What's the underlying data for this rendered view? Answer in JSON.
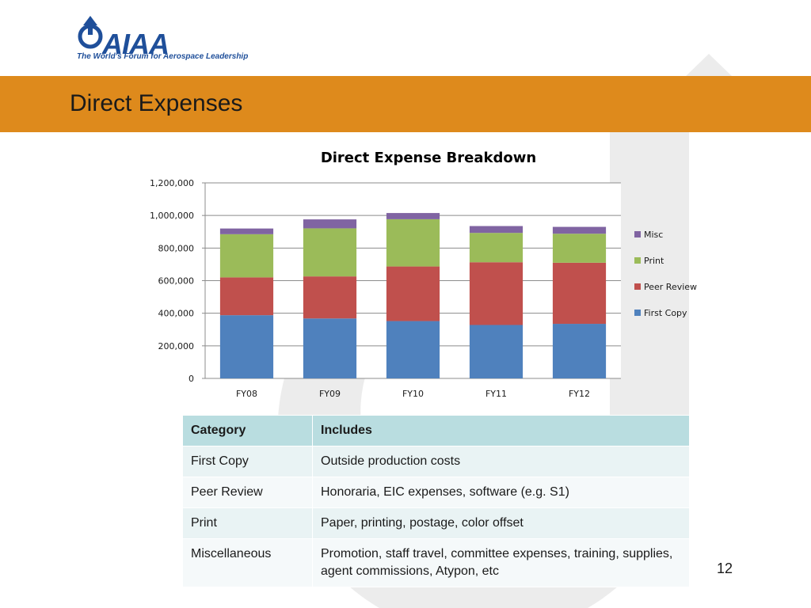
{
  "logo": {
    "text": "AIAA",
    "tagline": "The World's Forum for Aerospace Leadership"
  },
  "slide": {
    "title": "Direct Expenses",
    "page_number": "12",
    "accent_color": "#de8a1c"
  },
  "chart_data": {
    "type": "bar",
    "stacked": true,
    "title": "Direct Expense Breakdown",
    "xlabel": "",
    "ylabel": "",
    "categories": [
      "FY08",
      "FY09",
      "FY10",
      "FY11",
      "FY12"
    ],
    "series": [
      {
        "name": "First Copy",
        "color": "#4f81bd",
        "values": [
          388000,
          368000,
          352000,
          328000,
          335000
        ]
      },
      {
        "name": "Peer Review",
        "color": "#c0504d",
        "values": [
          232000,
          258000,
          335000,
          385000,
          375000
        ]
      },
      {
        "name": "Print",
        "color": "#9bbb59",
        "values": [
          265000,
          295000,
          290000,
          180000,
          178000
        ]
      },
      {
        "name": "Misc",
        "color": "#8064a2",
        "values": [
          35000,
          55000,
          38000,
          42000,
          42000
        ]
      }
    ],
    "ylim": [
      0,
      1200000
    ],
    "yticks": [
      0,
      200000,
      400000,
      600000,
      800000,
      1000000,
      1200000
    ],
    "ytick_labels": [
      "0",
      "200,000",
      "400,000",
      "600,000",
      "800,000",
      "1,000,000",
      "1,200,000"
    ],
    "grid": true,
    "legend_position": "right",
    "legend_order": [
      "Misc",
      "Print",
      "Peer Review",
      "First Copy"
    ]
  },
  "table": {
    "headers": [
      "Category",
      "Includes"
    ],
    "rows": [
      [
        "First Copy",
        "Outside production costs"
      ],
      [
        "Peer Review",
        "Honoraria, EIC expenses, software (e.g. S1)"
      ],
      [
        "Print",
        "Paper, printing, postage, color offset"
      ],
      [
        "Miscellaneous",
        "Promotion, staff travel, committee expenses, training, supplies, agent commissions, Atypon, etc"
      ]
    ]
  }
}
